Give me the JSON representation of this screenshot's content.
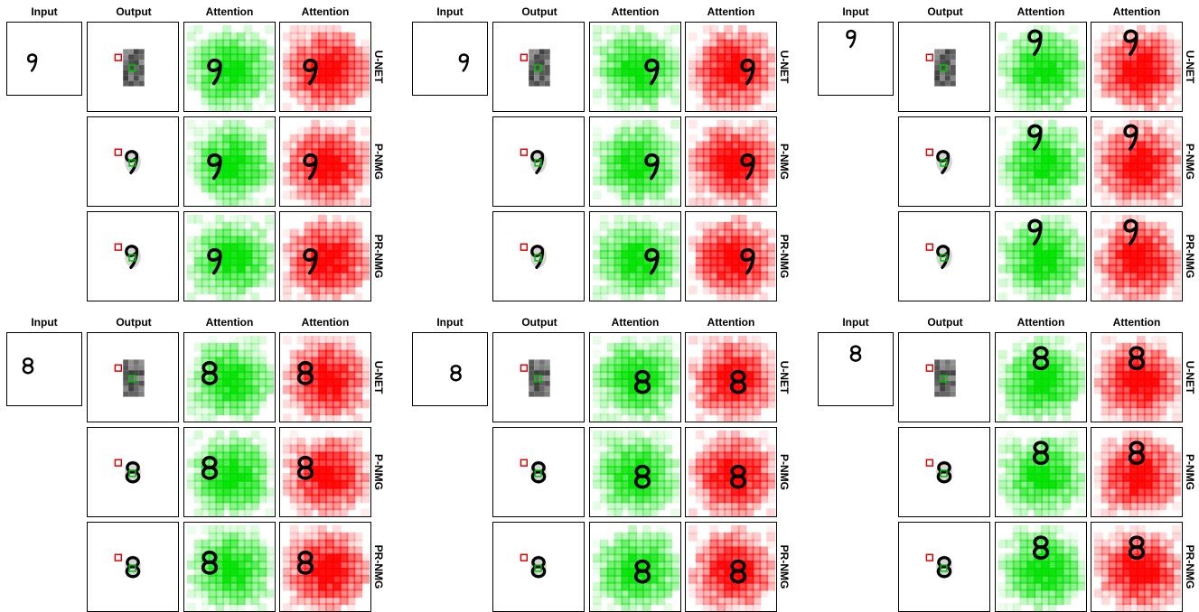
{
  "figure": {
    "column_headers": [
      "Input",
      "Output",
      "Attention",
      "Attention"
    ],
    "methods": [
      "U-NET",
      "P-NMG",
      "PR-NMG"
    ],
    "colors": {
      "green_attention": "#00e000",
      "red_attention": "#ff0000",
      "digit": "#000000",
      "query_marker": "#e00000",
      "target_marker": "#00c000",
      "border": "#000000"
    },
    "samples": [
      {
        "digit": "9",
        "digit_pos": [
          0.35,
          0.55
        ],
        "output_style": [
          "blocky",
          "smooth",
          "smooth"
        ]
      },
      {
        "digit": "9",
        "digit_pos": [
          0.7,
          0.55
        ],
        "output_style": [
          "blocky",
          "smooth",
          "smooth"
        ]
      },
      {
        "digit": "9",
        "digit_pos": [
          0.45,
          0.22
        ],
        "output_style": [
          "blocky",
          "smooth",
          "smooth"
        ]
      },
      {
        "digit": "8",
        "digit_pos": [
          0.28,
          0.45
        ],
        "output_style": [
          "blocky",
          "smooth",
          "smooth"
        ]
      },
      {
        "digit": "8",
        "digit_pos": [
          0.58,
          0.55
        ],
        "output_style": [
          "blocky",
          "smooth",
          "smooth"
        ]
      },
      {
        "digit": "8",
        "digit_pos": [
          0.5,
          0.28
        ],
        "output_style": [
          "blocky",
          "smooth",
          "smooth"
        ]
      }
    ]
  }
}
